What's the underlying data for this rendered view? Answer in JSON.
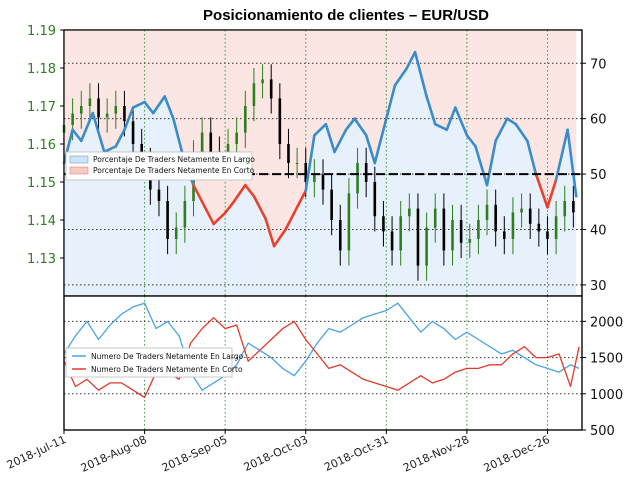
{
  "chart_data": [
    {
      "type": "line",
      "title": "Posicionamiento de clientes – EUR/USD",
      "panel": "upper",
      "left_axis": {
        "ylim": [
          1.12,
          1.19
        ],
        "ticks": [
          "1.13",
          "1.14",
          "1.15",
          "1.16",
          "1.17",
          "1.18",
          "1.19"
        ],
        "color": "#2e7d1f"
      },
      "right_axis": {
        "ylim": [
          28,
          76
        ],
        "ticks": [
          "30",
          "40",
          "50",
          "60",
          "70"
        ]
      },
      "x_ticks": [
        "2018-Jul-11",
        "2018-Aug-08",
        "2018-Sep-05",
        "2018-Oct-03",
        "2018-Oct-31",
        "2018-Nov-28",
        "2018-Dec-26"
      ],
      "grid": true,
      "reference_line": 50,
      "legend": {
        "placement": "upper-left",
        "entries": [
          "Porcentaje De Traders Netamente En Largo",
          "Porcentaje De Traders Netamente En Corto"
        ]
      },
      "series": [
        {
          "kind": "percent_long",
          "color": "#3a8cc8",
          "days": [
            0,
            3,
            6,
            10,
            14,
            18,
            21,
            24,
            28,
            31,
            35,
            38,
            42,
            45,
            49,
            52,
            56,
            59,
            63,
            66,
            70,
            73,
            77,
            80,
            84,
            87,
            91,
            94,
            98,
            101,
            105,
            108,
            112,
            115,
            119,
            122,
            126,
            129,
            133,
            136,
            140,
            143,
            147,
            150,
            154,
            157,
            161,
            164,
            168,
            171,
            175,
            178
          ],
          "values": [
            52,
            58,
            56,
            61,
            54,
            55,
            58,
            62,
            63,
            61,
            64,
            60,
            52,
            48,
            44,
            41,
            43,
            45,
            48,
            46,
            42,
            37,
            40,
            43,
            47,
            57,
            59,
            54,
            58,
            60,
            57,
            52,
            60,
            66,
            69,
            72,
            64,
            59,
            58,
            62,
            57,
            55,
            48,
            56,
            60,
            59,
            56,
            50,
            44,
            49,
            58,
            46
          ]
        },
        {
          "kind": "candles",
          "color": "#000000",
          "days": [
            0,
            3,
            6,
            9,
            12,
            15,
            18,
            21,
            24,
            27,
            30,
            33,
            36,
            39,
            42,
            45,
            48,
            51,
            54,
            57,
            60,
            63,
            66,
            69,
            72,
            75,
            78,
            81,
            84,
            87,
            90,
            93,
            96,
            99,
            102,
            105,
            108,
            111,
            114,
            117,
            120,
            123,
            126,
            129,
            132,
            135,
            138,
            141,
            144,
            147,
            150,
            153,
            156,
            159,
            162,
            165,
            168,
            171,
            174,
            177
          ],
          "close": [
            1.165,
            1.168,
            1.17,
            1.172,
            1.167,
            1.168,
            1.17,
            1.166,
            1.16,
            1.155,
            1.148,
            1.145,
            1.135,
            1.138,
            1.145,
            1.157,
            1.163,
            1.158,
            1.155,
            1.16,
            1.163,
            1.17,
            1.176,
            1.177,
            1.172,
            1.16,
            1.155,
            1.155,
            1.15,
            1.152,
            1.148,
            1.14,
            1.132,
            1.147,
            1.155,
            1.15,
            1.141,
            1.137,
            1.132,
            1.141,
            1.143,
            1.128,
            1.138,
            1.143,
            1.132,
            1.14,
            1.134,
            1.135,
            1.14,
            1.144,
            1.137,
            1.135,
            1.142,
            1.143,
            1.139,
            1.137,
            1.135,
            1.141,
            1.145,
            1.142
          ]
        }
      ]
    },
    {
      "type": "line",
      "panel": "lower",
      "right_axis": {
        "ylim": [
          500,
          2350
        ],
        "ticks": [
          "500",
          "1000",
          "1500",
          "2000"
        ]
      },
      "grid": true,
      "legend": {
        "placement": "left",
        "entries": [
          "Numero De Traders Netamente En Largo",
          "Numero De Traders Netamente En Corto"
        ]
      },
      "series": [
        {
          "kind": "count_long",
          "color": "#4aa3e6",
          "days": [
            0,
            4,
            8,
            12,
            16,
            20,
            24,
            28,
            32,
            36,
            40,
            44,
            48,
            52,
            56,
            60,
            64,
            68,
            72,
            76,
            80,
            84,
            88,
            92,
            96,
            100,
            104,
            108,
            112,
            116,
            120,
            124,
            128,
            132,
            136,
            140,
            144,
            148,
            152,
            156,
            160,
            164,
            168,
            172,
            176,
            179
          ],
          "values": [
            1550,
            1800,
            2000,
            1750,
            1950,
            2100,
            2200,
            2250,
            1900,
            2000,
            1800,
            1300,
            1050,
            1150,
            1250,
            1400,
            1700,
            1600,
            1500,
            1350,
            1250,
            1450,
            1700,
            1900,
            1850,
            1950,
            2050,
            2100,
            2150,
            2250,
            2050,
            1850,
            2000,
            1900,
            1750,
            1850,
            1750,
            1650,
            1550,
            1600,
            1500,
            1400,
            1350,
            1300,
            1400,
            1350
          ]
        },
        {
          "kind": "count_short",
          "color": "#e03a2a",
          "days": [
            0,
            4,
            8,
            12,
            16,
            20,
            24,
            28,
            32,
            36,
            40,
            44,
            48,
            52,
            56,
            60,
            64,
            68,
            72,
            76,
            80,
            84,
            88,
            92,
            96,
            100,
            104,
            108,
            112,
            116,
            120,
            124,
            128,
            132,
            136,
            140,
            144,
            148,
            152,
            156,
            160,
            164,
            168,
            172,
            176,
            179
          ],
          "values": [
            1450,
            1100,
            1200,
            1050,
            1150,
            1150,
            1050,
            950,
            1300,
            1300,
            1200,
            1700,
            1900,
            2050,
            1900,
            1950,
            1450,
            1600,
            1750,
            1900,
            2000,
            1750,
            1550,
            1350,
            1400,
            1300,
            1200,
            1150,
            1100,
            1050,
            1150,
            1250,
            1150,
            1200,
            1300,
            1350,
            1350,
            1400,
            1400,
            1550,
            1650,
            1500,
            1500,
            1550,
            1100,
            1650
          ]
        }
      ]
    }
  ]
}
